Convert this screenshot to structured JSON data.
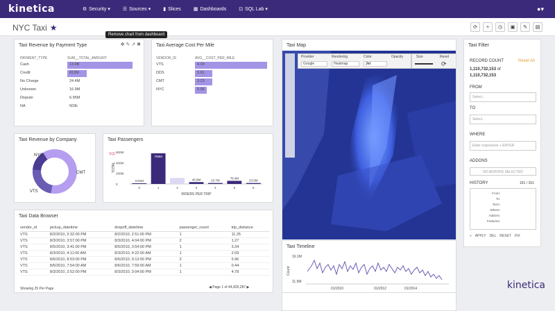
{
  "nav": {
    "logo": "kinetica",
    "items": [
      {
        "label": "Security ▾",
        "icon": "⚙"
      },
      {
        "label": "Sources ▾",
        "icon": "☰"
      },
      {
        "label": "Slices",
        "icon": "▮"
      },
      {
        "label": "Dashboards",
        "icon": "▦"
      },
      {
        "label": "SQL Lab ▾",
        "icon": "⊡"
      }
    ],
    "user": "▾"
  },
  "page": {
    "title": "NYC Taxi",
    "tooltip": "Remove chart from dashboard"
  },
  "revenue_by_payment": {
    "title": "Taxi Revenue by Payment Type",
    "col1": "PAYMENT_TYPE",
    "col2": "SUM__TOTAL_AMOUNT",
    "rows": [
      {
        "k": "Cash",
        "v": "13.9B",
        "frac": 1.0
      },
      {
        "k": "Credit",
        "v": "812M",
        "frac": 0.3
      },
      {
        "k": "No Charge",
        "v": "24.4M",
        "frac": 0
      },
      {
        "k": "Unknown",
        "v": "16.9M",
        "frac": 0
      },
      {
        "k": "Dispute",
        "v": "6.95M",
        "frac": 0
      },
      {
        "k": "NA",
        "v": "503k",
        "frac": 0
      }
    ]
  },
  "avg_cost": {
    "title": "Taxi Average Cost Per Mile",
    "col1": "VENDOR_ID",
    "col2": "AVG__COST_PER_MILE",
    "rows": [
      {
        "k": "VTS",
        "v": "4.03",
        "frac": 1.0
      },
      {
        "k": "DDS",
        "v": "3.61",
        "frac": 0.24
      },
      {
        "k": "CMT",
        "v": "3.23",
        "frac": 0.24
      },
      {
        "k": "NYC",
        "v": "0.96",
        "frac": 0.16
      }
    ]
  },
  "map": {
    "title": "Taxi Map",
    "provider_label": "Provider",
    "provider": "Google",
    "rendering_label": "Rendering",
    "rendering": "Heatmap",
    "color_label": "Color",
    "color": "Jet",
    "opacity_label": "Opacity",
    "size_label": "Size",
    "reset_label": "Reset"
  },
  "company": {
    "title": "Taxi Revenue by Company",
    "labels": [
      "NYC",
      "CMT",
      "VTS"
    ]
  },
  "passengers": {
    "title": "Taxi Passengers",
    "xlabel": "RIDERS PER TRIP",
    "ylabel": "TOTAL",
    "y_prefix": "SQL",
    "yticks": [
      "600M",
      "400M",
      "200M",
      "0"
    ],
    "labels": [
      "3.91M",
      "769M",
      "",
      "46.9M",
      "23.7M",
      "78.4M",
      "23.5M"
    ],
    "categories": [
      "0",
      "1",
      "2",
      "3",
      "4",
      "5",
      "6"
    ]
  },
  "chart_data": {
    "type": "bar",
    "title": "Taxi Passengers",
    "xlabel": "RIDERS PER TRIP",
    "ylabel": "TOTAL",
    "categories": [
      "0",
      "1",
      "2",
      "3",
      "4",
      "5",
      "6"
    ],
    "values": [
      3.91,
      769,
      150,
      46.9,
      23.7,
      78.4,
      23.5
    ],
    "ylim": [
      0,
      800
    ]
  },
  "filter": {
    "title": "Taxi Filter",
    "record_label": "RECORD COUNT",
    "reset": "Reset All",
    "count1": "1,110,732,153",
    "of": "of",
    "count2": "1,110,732,153",
    "from": "FROM",
    "to": "TO",
    "select": "Select...",
    "where": "WHERE",
    "where_placeholder": "Enter expression + ENTER",
    "addons": "ADDONS",
    "addons_none": "NO ADDONS SELECTED",
    "history": "HISTORY",
    "history_count": "151 / 151",
    "history_fields": [
      "From:",
      "To:",
      "Term:",
      "Where:",
      "Addons:",
      "Features:"
    ],
    "apply": "APPLY",
    "del": "DEL",
    "reset_btn": "RESET",
    "fix": "FIX"
  },
  "browser": {
    "title": "Taxi Data Browser",
    "columns": [
      "vendor_id",
      "pickup_datetime",
      "dropoff_datetime",
      "passenger_count",
      "trip_distance"
    ],
    "rows": [
      [
        "VTS",
        "8/2/2010, 2:32:00 PM",
        "8/2/2010, 2:51:00 PM",
        "1",
        "11.25"
      ],
      [
        "VTS",
        "8/3/2010, 3:57:00 PM",
        "8/3/2010, 4:04:00 PM",
        "2",
        "1.27"
      ],
      [
        "VTS",
        "8/5/2010, 3:41:00 PM",
        "8/5/2010, 3:54:00 PM",
        "1",
        "3.34"
      ],
      [
        "VTS",
        "8/3/2010, 4:11:00 AM",
        "8/3/2010, 4:22:00 AM",
        "1",
        "2.09"
      ],
      [
        "VTS",
        "8/6/2010, 8:53:00 PM",
        "8/6/2010, 9:13:00 PM",
        "2",
        "5.96"
      ],
      [
        "VTS",
        "8/6/2010, 7:54:00 AM",
        "8/6/2010, 7:59:00 AM",
        "1",
        "0.44"
      ],
      [
        "VTS",
        "8/3/2010, 2:52:00 PM",
        "8/3/2010, 3:04:00 PM",
        "1",
        "4.78"
      ]
    ],
    "footer": "Showing 25 Per Page",
    "pager": "Page 1 of 44,429,287"
  },
  "timeline": {
    "title": "Taxi Timeline",
    "ylabel": "Count",
    "yticks": [
      "16.1M",
      "11.5M"
    ],
    "xticks": [
      "01/2010",
      "01/2012",
      "01/2014"
    ]
  },
  "brand": "kinetica"
}
